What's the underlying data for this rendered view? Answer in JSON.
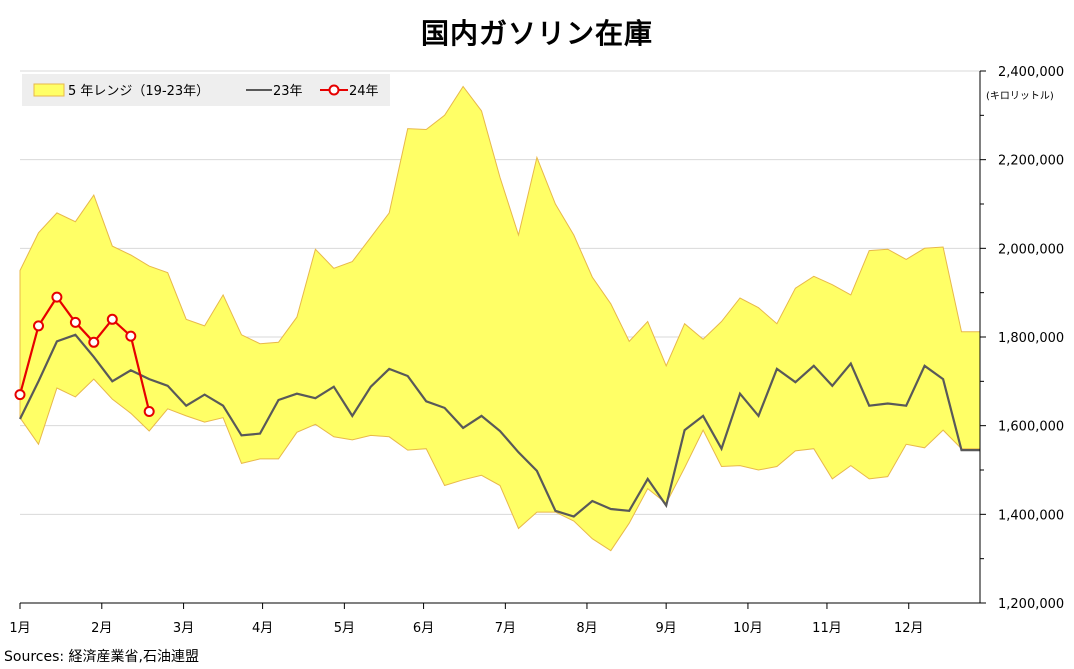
{
  "chart_data": {
    "type": "area",
    "title": "国内ガソリン在庫",
    "unit_label": "(キロリットル)",
    "source": "Sources: 経済産業省,石油連盟",
    "y_axis_position": "right",
    "ylim": [
      1200000,
      2400000
    ],
    "y_ticks": [
      1200000,
      1400000,
      1600000,
      1800000,
      2000000,
      2200000,
      2400000
    ],
    "y_tick_labels": [
      "1,200,000",
      "1,400,000",
      "1,600,000",
      "1,800,000",
      "2,000,000",
      "2,200,000",
      "2,400,000"
    ],
    "x_unit": "week",
    "xlim": [
      0,
      52
    ],
    "x_ticks": [
      0,
      4.43,
      8.86,
      13.14,
      17.57,
      21.86,
      26.29,
      30.71,
      35.0,
      39.43,
      43.71,
      48.14
    ],
    "x_tick_labels": [
      "1月",
      "2月",
      "3月",
      "4月",
      "5月",
      "6月",
      "7月",
      "8月",
      "9月",
      "10月",
      "11月",
      "12月"
    ],
    "grid": true,
    "legend_position": "top-left",
    "colors": {
      "band_fill": "#FFFF66",
      "band_stroke": "#E8B84A",
      "line_23": "#595959",
      "line_24": "#E60000"
    },
    "series": [
      {
        "name": "5 年レンジ（19-23年）",
        "kind": "range",
        "x": [
          0,
          1,
          2,
          3,
          4,
          5,
          6,
          7,
          8,
          9,
          10,
          11,
          12,
          13,
          14,
          15,
          16,
          17,
          18,
          19,
          20,
          21,
          22,
          23,
          24,
          25,
          26,
          27,
          28,
          29,
          30,
          31,
          32,
          33,
          34,
          35,
          36,
          37,
          38,
          39,
          40,
          41,
          42,
          43,
          44,
          45,
          46,
          47,
          48,
          49,
          50,
          51,
          52
        ],
        "upper": [
          1950000,
          2035000,
          2080000,
          2060000,
          2120000,
          2005000,
          1985000,
          1960000,
          1945000,
          1840000,
          1825000,
          1895000,
          1805000,
          1785000,
          1788000,
          1845000,
          1998000,
          1955000,
          1970000,
          2025000,
          2080000,
          2270000,
          2268000,
          2300000,
          2365000,
          2310000,
          2160000,
          2030000,
          2205000,
          2100000,
          2030000,
          1935000,
          1875000,
          1790000,
          1835000,
          1735000,
          1830000,
          1795000,
          1835000,
          1888000,
          1866000,
          1830000,
          1910000,
          1937000,
          1918000,
          1895000,
          1995000,
          1998000,
          1975000,
          2000000,
          2003000,
          1812000,
          1812000
        ],
        "lower": [
          1618000,
          1558000,
          1685000,
          1665000,
          1705000,
          1660000,
          1628000,
          1588000,
          1638000,
          1622000,
          1608000,
          1618000,
          1515000,
          1525000,
          1525000,
          1585000,
          1603000,
          1575000,
          1568000,
          1578000,
          1575000,
          1545000,
          1548000,
          1465000,
          1478000,
          1488000,
          1465000,
          1368000,
          1405000,
          1405000,
          1385000,
          1345000,
          1318000,
          1380000,
          1458000,
          1425000,
          1505000,
          1590000,
          1508000,
          1510000,
          1500000,
          1508000,
          1543000,
          1548000,
          1480000,
          1510000,
          1480000,
          1485000,
          1558000,
          1550000,
          1590000,
          1548000,
          1548000
        ]
      },
      {
        "name": "23年",
        "x": [
          0,
          1,
          2,
          3,
          4,
          5,
          6,
          7,
          8,
          9,
          10,
          11,
          12,
          13,
          14,
          15,
          16,
          17,
          18,
          19,
          20,
          21,
          22,
          23,
          24,
          25,
          26,
          27,
          28,
          29,
          30,
          31,
          32,
          33,
          34,
          35,
          36,
          37,
          38,
          39,
          40,
          41,
          42,
          43,
          44,
          45,
          46,
          47,
          48,
          49,
          50,
          51,
          52
        ],
        "values": [
          1615000,
          1700000,
          1790000,
          1805000,
          1755000,
          1700000,
          1725000,
          1705000,
          1690000,
          1645000,
          1670000,
          1645000,
          1578000,
          1582000,
          1658000,
          1672000,
          1662000,
          1688000,
          1622000,
          1688000,
          1728000,
          1712000,
          1655000,
          1640000,
          1595000,
          1622000,
          1588000,
          1540000,
          1498000,
          1408000,
          1395000,
          1430000,
          1412000,
          1408000,
          1480000,
          1420000,
          1590000,
          1622000,
          1548000,
          1672000,
          1622000,
          1728000,
          1698000,
          1735000,
          1690000,
          1740000,
          1645000,
          1650000,
          1645000,
          1735000,
          1705000,
          1545000,
          1545000
        ]
      },
      {
        "name": "24年",
        "x": [
          0,
          1,
          2,
          3,
          4,
          5,
          6,
          7
        ],
        "values": [
          1670000,
          1825000,
          1890000,
          1833000,
          1788000,
          1840000,
          1802000,
          1632000
        ]
      }
    ]
  }
}
